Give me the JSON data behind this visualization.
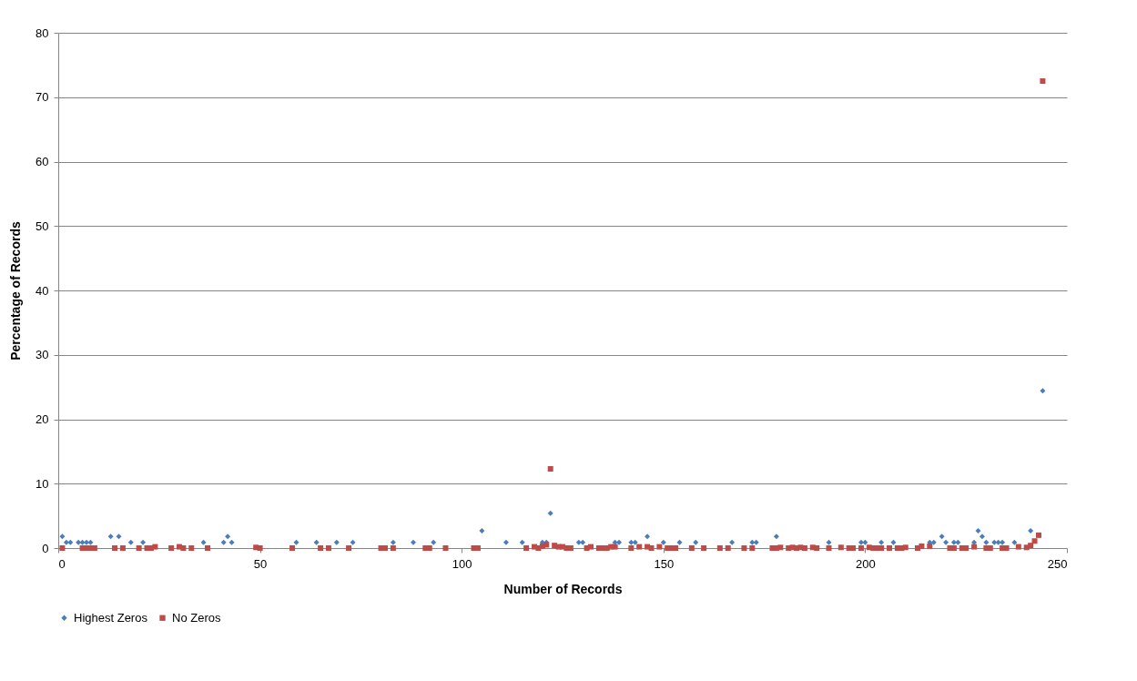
{
  "chart_data": {
    "type": "scatter",
    "xlabel": "Number of Records",
    "ylabel": "Percentage of Records",
    "xlim": [
      0,
      250
    ],
    "xticks": [
      0,
      50,
      100,
      150,
      200,
      250
    ],
    "ylim": [
      0,
      80
    ],
    "yticks": [
      0,
      10,
      20,
      30,
      40,
      50,
      60,
      70,
      80
    ],
    "grid": "y",
    "legend": "bottom",
    "series": [
      {
        "name": "Highest Zeros",
        "color": "#4a7ebb",
        "marker": "diamond",
        "x": [
          1,
          2,
          3,
          5,
          6,
          7,
          8,
          13,
          15,
          18,
          21,
          36,
          41,
          42,
          43,
          59,
          64,
          69,
          73,
          83,
          88,
          93,
          105,
          111,
          115,
          120,
          121,
          122,
          129,
          130,
          138,
          139,
          142,
          143,
          146,
          150,
          154,
          158,
          167,
          172,
          173,
          178,
          191,
          199,
          200,
          204,
          207,
          216,
          217,
          219,
          220,
          222,
          223,
          227,
          228,
          229,
          230,
          232,
          233,
          234,
          237,
          241,
          244
        ],
        "values": [
          1.8,
          0.9,
          0.9,
          0.9,
          0.9,
          0.9,
          0.9,
          1.8,
          1.8,
          0.9,
          0.9,
          0.9,
          0.9,
          1.8,
          0.9,
          0.9,
          0.9,
          0.9,
          0.9,
          0.9,
          0.9,
          0.9,
          2.7,
          0.9,
          0.9,
          0.9,
          0.9,
          5.4,
          0.9,
          0.9,
          0.9,
          0.9,
          0.9,
          0.9,
          1.8,
          0.9,
          0.9,
          0.9,
          0.9,
          0.9,
          0.9,
          1.8,
          0.9,
          0.9,
          0.9,
          0.9,
          0.9,
          0.9,
          0.9,
          1.8,
          0.9,
          0.9,
          0.9,
          0.9,
          2.7,
          1.8,
          0.9,
          0.9,
          0.9,
          0.9,
          0.9,
          2.7,
          24.4
        ]
      },
      {
        "name": "No Zeros",
        "color": "#be4b48",
        "marker": "square",
        "x": [
          1,
          6,
          7,
          8,
          9,
          14,
          16,
          20,
          22,
          23,
          24,
          28,
          30,
          31,
          33,
          37,
          49,
          50,
          58,
          65,
          67,
          72,
          80,
          81,
          83,
          91,
          92,
          96,
          103,
          104,
          116,
          118,
          119,
          120,
          121,
          122,
          123,
          124,
          125,
          126,
          127,
          131,
          132,
          134,
          135,
          136,
          137,
          138,
          142,
          144,
          146,
          147,
          149,
          151,
          152,
          153,
          157,
          160,
          164,
          166,
          170,
          172,
          177,
          178,
          179,
          181,
          182,
          183,
          184,
          185,
          187,
          188,
          191,
          194,
          196,
          197,
          199,
          201,
          202,
          203,
          204,
          206,
          208,
          209,
          210,
          213,
          214,
          216,
          221,
          222,
          224,
          225,
          227,
          230,
          231,
          234,
          235,
          238,
          240,
          241,
          242,
          243,
          244
        ],
        "values": [
          0,
          0,
          0,
          0,
          0,
          0,
          0,
          0,
          0,
          0,
          0.2,
          0,
          0.2,
          0,
          0,
          0,
          0.1,
          0,
          0,
          0,
          0,
          0,
          0,
          0,
          0,
          0,
          0,
          0,
          0,
          0,
          0,
          0.2,
          0,
          0.3,
          0.5,
          12.3,
          0.4,
          0.2,
          0.2,
          0,
          0,
          0,
          0.2,
          0,
          0,
          0,
          0.2,
          0.2,
          0,
          0.2,
          0.2,
          0,
          0.2,
          0,
          0,
          0,
          0,
          0,
          0,
          0,
          0,
          0,
          0,
          0,
          0.1,
          0,
          0.1,
          0,
          0.1,
          0,
          0.1,
          0,
          0,
          0.1,
          0,
          0,
          0,
          0.1,
          0,
          0,
          0,
          0,
          0,
          0,
          0.1,
          0,
          0.3,
          0.3,
          0,
          0,
          0,
          0,
          0.2,
          0,
          0,
          0,
          0,
          0.2,
          0.1,
          0.4,
          1.1,
          2.0,
          72.5
        ]
      }
    ]
  }
}
